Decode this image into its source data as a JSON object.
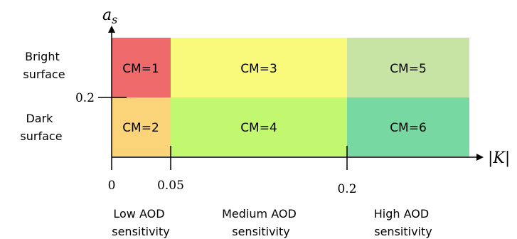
{
  "axes": {
    "y_label": "a",
    "y_label_subscript": "s",
    "x_label": "|K|",
    "y_tick": "0.2",
    "x_ticks": [
      "0",
      "0.05",
      "0.2"
    ]
  },
  "rows": {
    "top": [
      "Bright",
      "surface"
    ],
    "bottom": [
      "Dark",
      "surface"
    ]
  },
  "cells": [
    {
      "label": "CM=1",
      "color": "#ef6b6b"
    },
    {
      "label": "CM=2",
      "color": "#fbd47a"
    },
    {
      "label": "CM=3",
      "color": "#f9f97c"
    },
    {
      "label": "CM=4",
      "color": "#c2f870"
    },
    {
      "label": "CM=5",
      "color": "#c8e4a4"
    },
    {
      "label": "CM=6",
      "color": "#78d8a2"
    }
  ],
  "columns": [
    [
      "Low AOD",
      "sensitivity"
    ],
    [
      "Medium AOD",
      "sensitivity"
    ],
    [
      "High AOD",
      "sensitivity"
    ]
  ]
}
